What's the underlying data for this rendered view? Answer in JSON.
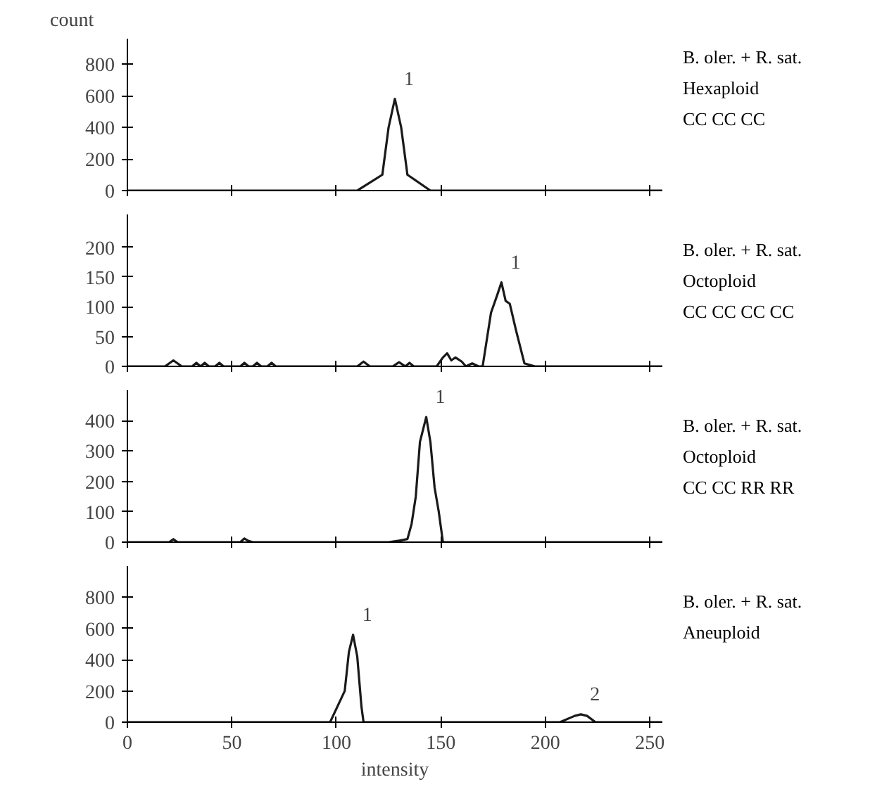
{
  "chart_data": [
    {
      "type": "line",
      "ylabel": "count",
      "color": "#1a1a1a",
      "xlim": [
        0,
        256
      ],
      "ylim": [
        0,
        960
      ],
      "xticks": [
        0,
        50,
        100,
        150,
        200,
        250
      ],
      "yticks": [
        0,
        200,
        400,
        600,
        800
      ],
      "tick_labels": "y",
      "x": [
        0,
        110,
        122,
        125,
        128,
        131,
        134,
        145,
        256
      ],
      "values": [
        0,
        0,
        100,
        400,
        580,
        400,
        100,
        0,
        0
      ],
      "annotations": [
        {
          "text": "1",
          "x": 128,
          "y": 580
        },
        "B. oler. + R. sat.",
        "Hexaploid",
        "CC CC CC"
      ]
    },
    {
      "type": "line",
      "color": "#1a1a1a",
      "xlim": [
        0,
        256
      ],
      "ylim": [
        0,
        255
      ],
      "xticks": [
        0,
        50,
        100,
        150,
        200,
        250
      ],
      "yticks": [
        0,
        50,
        100,
        150,
        200
      ],
      "tick_labels": "y",
      "x": [
        0,
        18,
        22,
        26,
        31,
        33,
        35,
        37,
        39,
        42,
        44,
        46,
        54,
        56,
        58,
        60,
        62,
        64,
        67,
        69,
        71,
        110,
        113,
        116,
        127,
        130,
        133,
        135,
        137,
        139,
        148,
        151,
        153,
        155,
        157,
        160,
        162,
        165,
        168,
        170,
        174,
        177,
        179,
        181,
        183,
        186,
        190,
        195,
        256
      ],
      "values": [
        0,
        0,
        10,
        0,
        0,
        6,
        0,
        6,
        0,
        0,
        6,
        0,
        0,
        6,
        0,
        0,
        6,
        0,
        0,
        6,
        0,
        0,
        8,
        0,
        0,
        7,
        0,
        6,
        0,
        0,
        0,
        15,
        22,
        10,
        15,
        8,
        0,
        5,
        0,
        0,
        90,
        120,
        141,
        110,
        105,
        60,
        5,
        0,
        0
      ],
      "annotations": [
        {
          "text": "1",
          "x": 179,
          "y": 141
        },
        "B. oler. + R. sat.",
        "Octoploid",
        "CC CC CC CC"
      ]
    },
    {
      "type": "line",
      "color": "#1a1a1a",
      "xlim": [
        0,
        256
      ],
      "ylim": [
        0,
        500
      ],
      "xticks": [
        0,
        50,
        100,
        150,
        200,
        250
      ],
      "yticks": [
        0,
        100,
        200,
        300,
        400
      ],
      "tick_labels": "y",
      "x": [
        0,
        20,
        22,
        24,
        54,
        56,
        58,
        60,
        125,
        130,
        134,
        136,
        138,
        140,
        143,
        145,
        147,
        149,
        151,
        256
      ],
      "values": [
        0,
        0,
        10,
        0,
        0,
        12,
        4,
        0,
        0,
        5,
        10,
        60,
        150,
        330,
        412,
        330,
        180,
        100,
        0,
        0
      ],
      "annotations": [
        {
          "text": "1",
          "x": 143,
          "y": 412
        },
        "B. oler. + R. sat.",
        "Octoploid",
        "CC CC RR RR"
      ]
    },
    {
      "type": "line",
      "xlabel": "intensity",
      "color": "#1a1a1a",
      "xlim": [
        0,
        256
      ],
      "ylim": [
        0,
        1000
      ],
      "xticks": [
        0,
        50,
        100,
        150,
        200,
        250
      ],
      "yticks": [
        0,
        200,
        400,
        600,
        800
      ],
      "x": [
        0,
        97,
        104,
        106,
        108,
        110,
        112,
        113,
        207,
        214,
        217,
        220,
        224,
        256
      ],
      "values": [
        0,
        0,
        200,
        450,
        560,
        420,
        100,
        0,
        0,
        40,
        50,
        40,
        0,
        0
      ],
      "annotations": [
        {
          "text": "1",
          "x": 108,
          "y": 560
        },
        {
          "text": "2",
          "x": 217,
          "y": 50
        },
        "B. oler. + R. sat.",
        "Aneuploid"
      ]
    }
  ]
}
